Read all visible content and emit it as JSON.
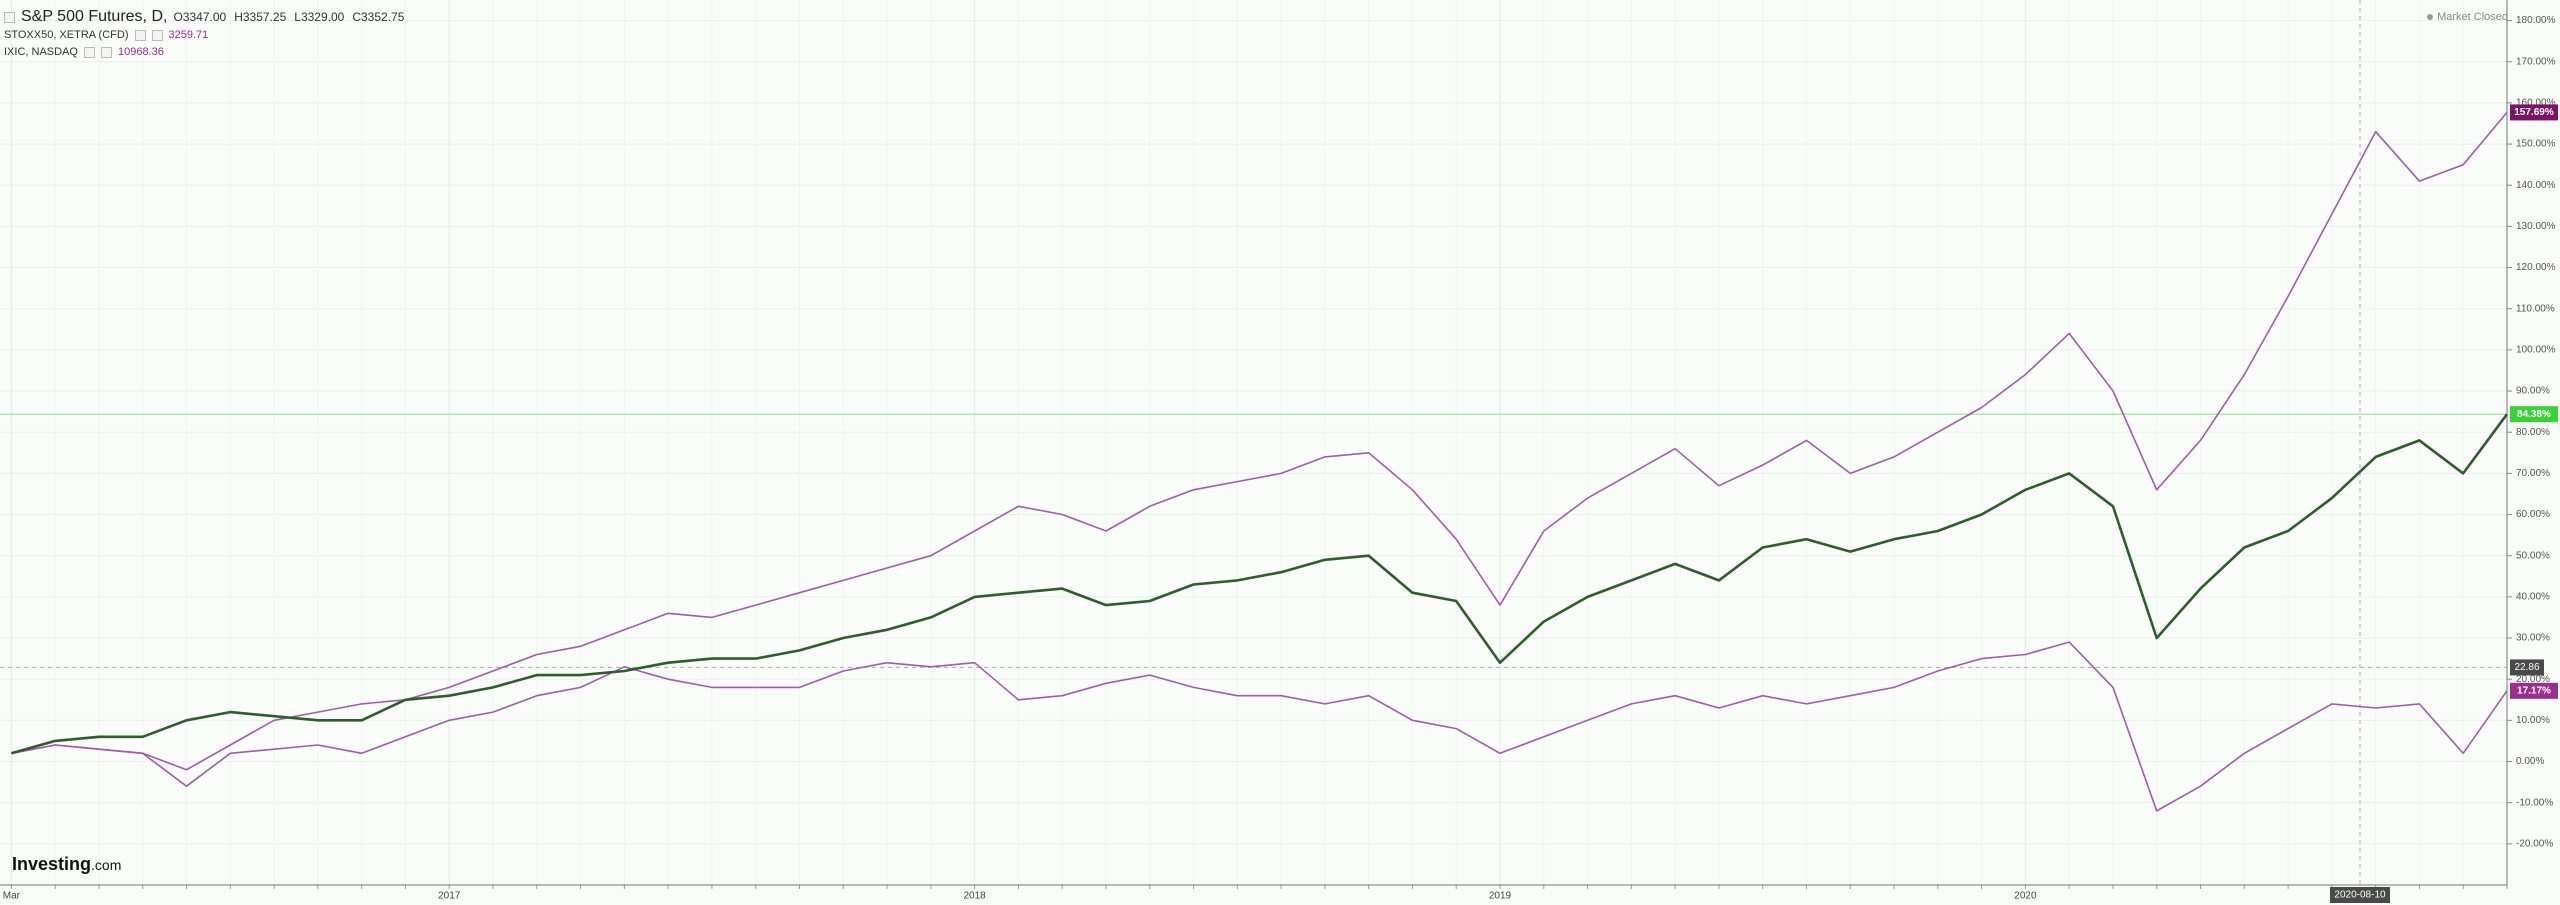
{
  "chart_data": {
    "type": "line",
    "brand": {
      "name": "Investing",
      "suffix": ".com"
    },
    "status": "Market Closed",
    "categories": [
      "Mar",
      null,
      null,
      null,
      null,
      null,
      null,
      null,
      null,
      null,
      "2017",
      null,
      null,
      null,
      null,
      null,
      null,
      null,
      null,
      null,
      null,
      null,
      "2018",
      null,
      null,
      null,
      null,
      null,
      null,
      null,
      null,
      null,
      null,
      null,
      "2019",
      null,
      null,
      null,
      null,
      null,
      null,
      null,
      null,
      null,
      null,
      null,
      "2020",
      null,
      null,
      null,
      null,
      null,
      null,
      null,
      null,
      null,
      null,
      null
    ],
    "series": [
      {
        "name": "S&P 500 Futures, D,",
        "color": "#2f5d2c",
        "quote": [
          {
            "label": "O",
            "value": "3347.00"
          },
          {
            "label": "H",
            "value": "3357.25"
          },
          {
            "label": "L",
            "value": "3329.00"
          },
          {
            "label": "C",
            "value": "3352.75"
          }
        ],
        "tag_color": "#39d339",
        "end_label": "84.38%",
        "values": [
          2,
          5,
          6,
          6,
          10,
          12,
          11,
          10,
          10,
          15,
          16,
          18,
          21,
          21,
          22,
          24,
          25,
          25,
          27,
          30,
          32,
          35,
          40,
          41,
          42,
          38,
          39,
          43,
          44,
          46,
          49,
          50,
          41,
          39,
          24,
          34,
          40,
          44,
          48,
          44,
          52,
          54,
          51,
          54,
          56,
          60,
          66,
          70,
          62,
          30,
          42,
          52,
          56,
          64,
          74,
          78,
          70,
          84.38
        ]
      },
      {
        "name": "STOXX50, XETRA (CFD)",
        "color": "#a35bb0",
        "quote": "3259.71",
        "tag_color": "#9c2f8e",
        "end_label": "17.17%",
        "values": [
          2,
          4,
          3,
          2,
          -6,
          2,
          3,
          4,
          2,
          6,
          10,
          12,
          16,
          18,
          23,
          20,
          18,
          18,
          18,
          22,
          24,
          23,
          24,
          15,
          16,
          19,
          21,
          18,
          16,
          16,
          14,
          16,
          10,
          8,
          2,
          6,
          10,
          14,
          16,
          13,
          16,
          14,
          16,
          18,
          22,
          25,
          26,
          29,
          18,
          -12,
          -6,
          2,
          8,
          14,
          13,
          14,
          2,
          17.17
        ]
      },
      {
        "name": "IXIC, NASDAQ",
        "color": "#a35bb0",
        "quote": "10968.36",
        "tag_color": "#7d1463",
        "end_label": "157.69%",
        "values": [
          2,
          4,
          3,
          2,
          -2,
          4,
          10,
          12,
          14,
          15,
          18,
          22,
          26,
          28,
          32,
          36,
          35,
          38,
          41,
          44,
          47,
          50,
          56,
          62,
          60,
          56,
          62,
          66,
          68,
          70,
          74,
          75,
          66,
          54,
          38,
          56,
          64,
          70,
          76,
          67,
          72,
          78,
          70,
          74,
          80,
          86,
          94,
          104,
          90,
          66,
          78,
          94,
          113,
          133,
          153,
          141,
          145,
          157.69
        ]
      }
    ],
    "crosshair": {
      "x_label": "2020-08-10",
      "y": 22.86
    },
    "ylim": [
      -30,
      185
    ],
    "yticks": [
      {
        "value": -20,
        "label": "-20.00%"
      },
      {
        "value": -10,
        "label": "-10.00%"
      },
      {
        "value": 0,
        "label": "0.00%"
      },
      {
        "value": 10,
        "label": "10.00%"
      },
      {
        "value": 20,
        "label": "20.00%"
      },
      {
        "value": 30,
        "label": "30.00%"
      },
      {
        "value": 40,
        "label": "40.00%"
      },
      {
        "value": 50,
        "label": "50.00%"
      },
      {
        "value": 60,
        "label": "60.00%"
      },
      {
        "value": 70,
        "label": "70.00%"
      },
      {
        "value": 80,
        "label": "80.00%"
      },
      {
        "value": 90,
        "label": "90.00%"
      },
      {
        "value": 100,
        "label": "100.00%"
      },
      {
        "value": 110,
        "label": "110.00%"
      },
      {
        "value": 120,
        "label": "120.00%"
      },
      {
        "value": 130,
        "label": "130.00%"
      },
      {
        "value": 140,
        "label": "140.00%"
      },
      {
        "value": 150,
        "label": "150.00%"
      },
      {
        "value": 160,
        "label": "160.00%"
      },
      {
        "value": 170,
        "label": "170.00%"
      },
      {
        "value": 180,
        "label": "180.00%"
      }
    ],
    "grid": true
  }
}
